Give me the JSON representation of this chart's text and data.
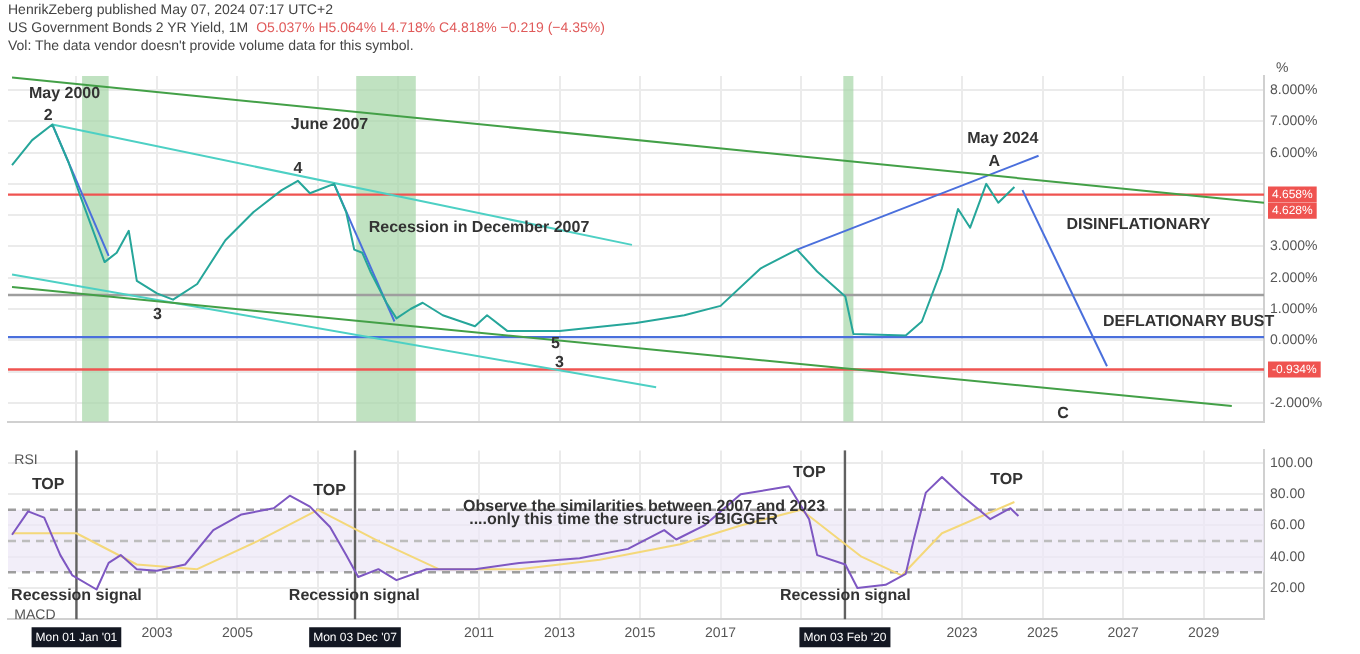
{
  "chart_data": [
    {
      "type": "line",
      "title": "US Government Bonds 2 YR Yield, 1M",
      "subtitle": "O5.037% H5.064% L4.718% C4.818% −0.219 (−4.35%)",
      "ylabel": "%",
      "x": [
        1999.4,
        1999.9,
        2000.4,
        2000.8,
        2001.1,
        2001.7,
        2002.0,
        2002.3,
        2002.5,
        2003.0,
        2003.4,
        2004.0,
        2004.7,
        2005.4,
        2006.1,
        2006.5,
        2006.8,
        2007.4,
        2007.7,
        2007.9,
        2008.1,
        2008.3,
        2008.7,
        2008.95,
        2009.3,
        2009.6,
        2010.1,
        2010.9,
        2011.2,
        2011.7,
        2013.0,
        2014.9,
        2016.1,
        2017.0,
        2018.0,
        2018.9,
        2019.4,
        2020.1,
        2020.3,
        2021.6,
        2022.0,
        2022.5,
        2022.9,
        2023.2,
        2023.6,
        2023.9,
        2024.3
      ],
      "xlim": [
        1999.3,
        2030.5
      ],
      "xticks": [
        2001,
        2003,
        2005,
        2007,
        2009,
        2011,
        2013,
        2015,
        2017,
        2019,
        2021,
        2023,
        2025,
        2027,
        2029
      ],
      "tick_labels": "y",
      "ylim": [
        -2.6,
        8.45
      ],
      "yticks": [
        {
          "value": -2,
          "label": "-2.000%"
        },
        {
          "value": -1,
          "label": null
        },
        {
          "value": 0,
          "label": "0.000%"
        },
        {
          "value": 1,
          "label": "1.000%"
        },
        {
          "value": 2,
          "label": "2.000%"
        },
        {
          "value": 3,
          "label": "3.000%"
        },
        {
          "value": 4,
          "label": null
        },
        {
          "value": 5,
          "label": null
        },
        {
          "value": 6,
          "label": "6.000%"
        },
        {
          "value": 7,
          "label": "7.000%"
        },
        {
          "value": 8,
          "label": "8.000%"
        }
      ],
      "grid": true,
      "legend": false,
      "marker": "none",
      "series": [
        {
          "color": "#26a69a",
          "values": [
            5.6,
            6.4,
            6.9,
            5.7,
            4.6,
            2.5,
            2.8,
            3.5,
            1.9,
            1.5,
            1.3,
            1.8,
            3.2,
            4.1,
            4.8,
            5.1,
            4.7,
            5.0,
            4.1,
            2.9,
            2.8,
            2.2,
            1.2,
            0.7,
            1.0,
            1.2,
            0.8,
            0.45,
            0.8,
            0.3,
            0.3,
            0.55,
            0.8,
            1.1,
            2.3,
            2.9,
            2.2,
            1.4,
            0.2,
            0.15,
            0.6,
            2.3,
            4.2,
            3.6,
            5.0,
            4.4,
            4.9
          ]
        },
        {
          "color": "#43a047",
          "x": [
            1999.4,
            2030.5
          ],
          "values": [
            8.4,
            4.4
          ]
        },
        {
          "color": "#43a047",
          "x": [
            1999.4,
            2029.7
          ],
          "values": [
            1.7,
            -2.1
          ]
        },
        {
          "color": "#4dd0c4",
          "x": [
            2000.4,
            2014.8
          ],
          "values": [
            6.9,
            3.05
          ]
        },
        {
          "color": "#4dd0c4",
          "x": [
            1999.4,
            2015.4
          ],
          "values": [
            2.1,
            -1.5
          ]
        },
        {
          "color": "#4a6fdc",
          "x": [
            2000.4,
            2001.8
          ],
          "values": [
            6.9,
            2.7
          ]
        },
        {
          "color": "#4a6fdc",
          "x": [
            2007.4,
            2008.9
          ],
          "values": [
            5.0,
            0.6
          ]
        },
        {
          "color": "#4a6fdc",
          "x": [
            2018.9,
            2024.9
          ],
          "values": [
            2.9,
            5.9
          ]
        },
        {
          "color": "#4a6fdc",
          "x": [
            2024.5,
            2026.6
          ],
          "values": [
            4.8,
            -0.83
          ]
        }
      ],
      "bands": [
        {
          "axis": "x",
          "from": 2001.14,
          "to": 2001.8,
          "color": "#a5d6a7"
        },
        {
          "axis": "x",
          "from": 2007.95,
          "to": 2009.43,
          "color": "#a5d6a7"
        },
        {
          "axis": "x",
          "from": 2020.05,
          "to": 2020.3,
          "color": "#a5d6a7"
        }
      ],
      "ref_lines": [
        {
          "axis": "y",
          "value": 4.658,
          "label": "4.658%",
          "color": "#ef5350"
        },
        {
          "axis": "y",
          "value": -0.934,
          "label": "-0.934%",
          "color": "#ef5350"
        },
        {
          "axis": "y",
          "value": 1.45,
          "color": "#9e9e9e"
        },
        {
          "axis": "y",
          "value": 0.1,
          "color": "#4a6fdc"
        }
      ],
      "annotations": [
        "HenrikZeberg published May 07, 2024 07:17 UTC+2",
        "Vol: The data vendor doesn't provide volume data for this symbol.",
        "May 2000",
        {
          "text": "2",
          "x": 2000.3,
          "y": 7.2
        },
        "3",
        {
          "text": "4",
          "x": 2006.5,
          "y": 5.5
        },
        "June 2007",
        "Recession in December 2007",
        {
          "text": "5",
          "x": 2012.9,
          "y": -0.1
        },
        "3",
        "May 2024",
        {
          "text": "A",
          "x": 2023.8,
          "y": 5.7
        },
        "DISINFLATIONARY",
        "DEFLATIONARY BUST",
        "C",
        "4.628%"
      ]
    },
    {
      "type": "line",
      "xlim": [
        1999.3,
        2030.5
      ],
      "xticks": [
        {
          "value": 2001,
          "label": null
        },
        2003,
        2005,
        {
          "value": 2007,
          "label": null
        },
        {
          "value": 2009,
          "label": null
        },
        2011,
        2013,
        2015,
        2017,
        {
          "value": 2019,
          "label": null
        },
        {
          "value": 2021,
          "label": null
        },
        2023,
        2025,
        2027,
        2029
      ],
      "ylim": [
        0,
        108
      ],
      "yticks": [
        {
          "value": 20,
          "label": "20.00"
        },
        {
          "value": 40,
          "label": "40.00"
        },
        {
          "value": 60,
          "label": "60.00"
        },
        {
          "value": 80,
          "label": "80.00"
        },
        {
          "value": 100,
          "label": "100.00"
        }
      ],
      "grid": true,
      "legend": false,
      "marker": "none",
      "x": [
        1999.4,
        1999.8,
        2000.2,
        2000.6,
        2000.9,
        2001.5,
        2001.8,
        2002.1,
        2002.5,
        2003.0,
        2003.7,
        2004.4,
        2005.1,
        2005.9,
        2006.3,
        2006.8,
        2007.3,
        2007.7,
        2008.0,
        2008.5,
        2008.95,
        2009.7,
        2010.9,
        2012.0,
        2013.5,
        2014.7,
        2015.6,
        2015.9,
        2016.6,
        2017.5,
        2018.7,
        2019.2,
        2019.4,
        2020.1,
        2020.4,
        2021.1,
        2021.6,
        2021.8,
        2022.1,
        2022.5,
        2023.0,
        2023.7,
        2024.2,
        2024.4
      ],
      "series": [
        {
          "color": "#7e57c2",
          "values": [
            54,
            69,
            65,
            41,
            28,
            19,
            36,
            41,
            32,
            31,
            35,
            57,
            67,
            71,
            79,
            72,
            59,
            41,
            27,
            32,
            25,
            32,
            32,
            36,
            39,
            45,
            57,
            51,
            60,
            80,
            85,
            64,
            41,
            35,
            20,
            22,
            29,
            51,
            81,
            91,
            79,
            64,
            71,
            66
          ]
        },
        {
          "color": "#f4d87a",
          "x": [
            1999.4,
            2001.0,
            2002.5,
            2004.0,
            2005.5,
            2007.0,
            2008.5,
            2010.0,
            2012.0,
            2014.0,
            2016.0,
            2017.5,
            2019.0,
            2020.5,
            2021.5,
            2022.5,
            2024.3
          ],
          "values": [
            55,
            55,
            35,
            32,
            50,
            70,
            50,
            32,
            32,
            38,
            48,
            60,
            70,
            40,
            28,
            55,
            75
          ]
        }
      ],
      "bands": [
        {
          "axis": "y",
          "from": 30,
          "to": 70,
          "color": "#ede7f6"
        }
      ],
      "ref_lines": [
        {
          "axis": "y",
          "value": 70,
          "color": "#9e9e9e",
          "line_style": "dashed"
        },
        {
          "axis": "y",
          "value": 50,
          "color": "#bdbdbd",
          "line_style": "dashed"
        },
        {
          "axis": "y",
          "value": 30,
          "color": "#9e9e9e",
          "line_style": "dashed"
        },
        {
          "axis": "x",
          "value": 2001.0,
          "label": "Mon 01 Jan '01",
          "color": "#616161"
        },
        {
          "axis": "x",
          "value": 2007.92,
          "label": "Mon 03 Dec '07",
          "color": "#616161"
        },
        {
          "axis": "x",
          "value": 2020.09,
          "label": "Mon 03 Feb '20",
          "color": "#616161"
        }
      ],
      "annotations": [
        "RSI",
        "MACD",
        "TOP",
        "TOP",
        "TOP",
        "TOP",
        {
          "text": "Recession signal",
          "x": 2001.0,
          "y": 15
        },
        {
          "text": "Recession signal",
          "x": 2007.9,
          "y": 15
        },
        {
          "text": "Recession signal",
          "x": 2020.1,
          "y": 15
        },
        {
          "text": "Observe the similarities between 2007 and 2023",
          "x": 2015.1,
          "y": 72
        },
        "....only this time the structure is BIGGER"
      ]
    }
  ]
}
